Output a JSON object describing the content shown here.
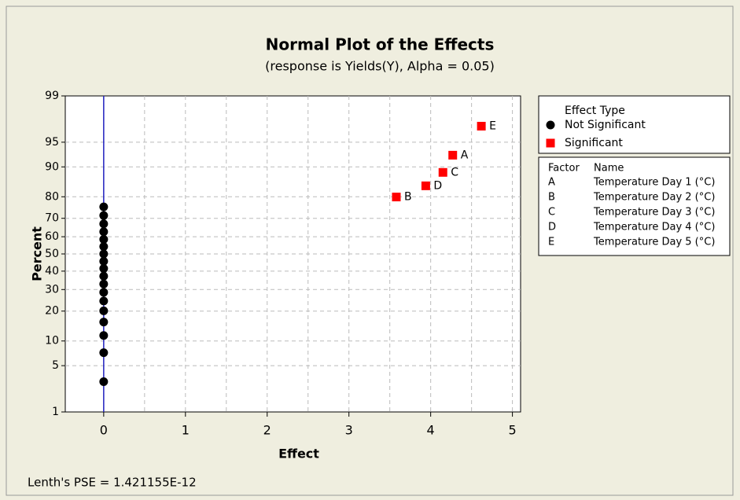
{
  "chart_data": {
    "type": "scatter",
    "title": "Normal Plot of the Effects",
    "subtitle": "(response is Yields(Y), Alpha = 0.05)",
    "xlabel": "Effect",
    "ylabel": "Percent",
    "xlim": [
      -0.47,
      5.1
    ],
    "xticks": [
      0,
      1,
      2,
      3,
      4,
      5
    ],
    "xminor": [
      0.5,
      1.5,
      2.5,
      3.5,
      4.5
    ],
    "ylim": [
      1,
      99
    ],
    "yticks": [
      1,
      5,
      10,
      20,
      30,
      40,
      50,
      60,
      70,
      80,
      90,
      95,
      99
    ],
    "yscale": "normal-probability",
    "grid": true,
    "reference_line": {
      "x": 0,
      "color": "#2020c0"
    },
    "legend": {
      "title": "Effect Type",
      "position": "right"
    },
    "series": [
      {
        "name": "Not Significant",
        "color": "#000000",
        "marker": "circle",
        "x": [
          0,
          0,
          0,
          0,
          0,
          0,
          0,
          0,
          0,
          0,
          0,
          0,
          0,
          0,
          0,
          0,
          0,
          0
        ],
        "values": [
          3.0,
          7.3,
          11.5,
          15.8,
          20.1,
          24.4,
          28.6,
          32.9,
          37.2,
          41.5,
          45.7,
          50.0,
          54.3,
          58.5,
          62.8,
          67.1,
          71.4,
          75.6
        ]
      },
      {
        "name": "Significant",
        "color": "#ff0000",
        "marker": "square",
        "x": [
          3.58,
          3.94,
          4.15,
          4.27,
          4.62
        ],
        "values": [
          79.9,
          84.2,
          88.5,
          92.7,
          97.0
        ],
        "labels": [
          "B",
          "D",
          "C",
          "A",
          "E"
        ]
      }
    ],
    "factor_table": {
      "headers": [
        "Factor",
        "Name"
      ],
      "rows": [
        [
          "A",
          "Temperature Day 1 (°C)"
        ],
        [
          "B",
          "Temperature Day 2 (°C)"
        ],
        [
          "C",
          "Temperature Day 3 (°C)"
        ],
        [
          "D",
          "Temperature Day 4 (°C)"
        ],
        [
          "E",
          "Temperature Day 5 (°C)"
        ]
      ]
    },
    "footnote": "Lenth's PSE = 1.421155E-12"
  }
}
